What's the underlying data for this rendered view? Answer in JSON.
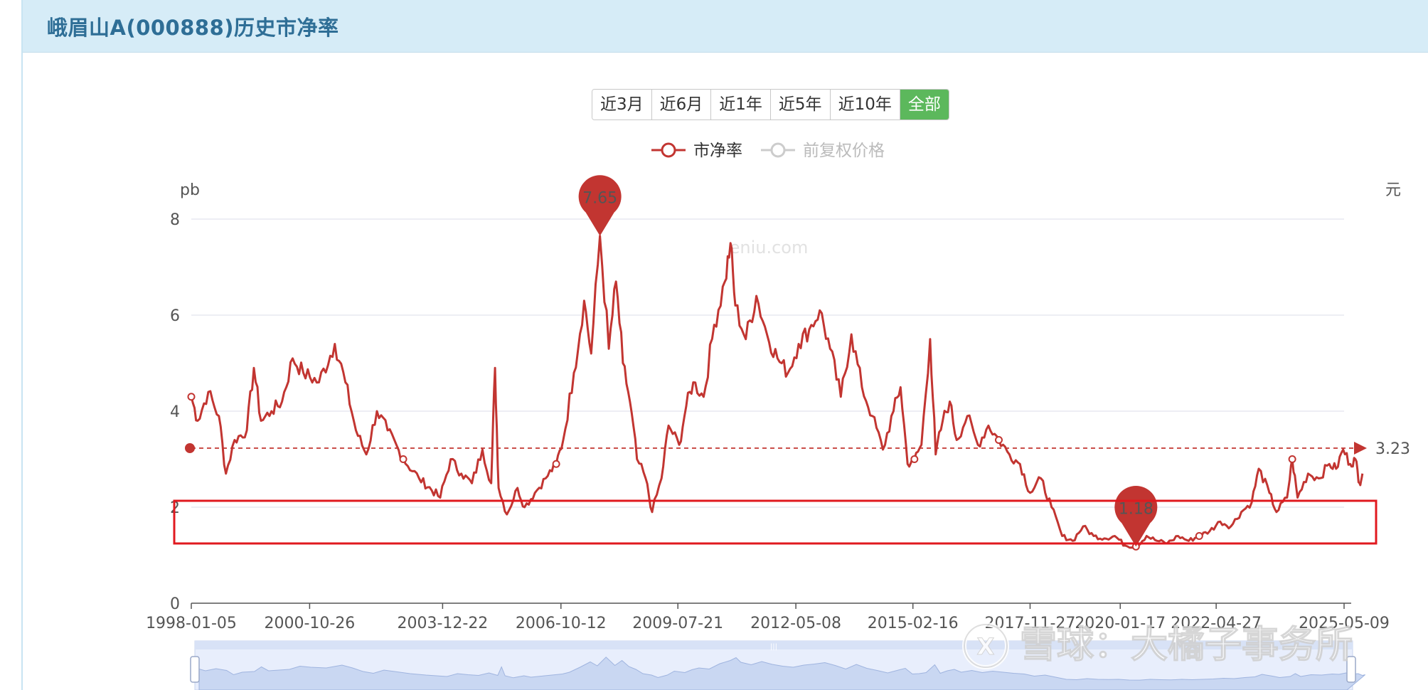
{
  "title": "峨眉山A(000888)历史市净率",
  "range_buttons": [
    "近3月",
    "近6月",
    "近1年",
    "近5年",
    "近10年",
    "全部"
  ],
  "active_range": "全部",
  "colors": {
    "series": "#c23531",
    "inactive": "#cccccc",
    "button_active": "#5cb85c",
    "highlight_box": "#e0191f"
  },
  "watermarks": {
    "site": "eniu.com",
    "xueqiu": "雪球：大橘子事务所"
  },
  "chart_data": {
    "type": "line",
    "yname_left": "pb",
    "yname_right": "元",
    "ylim": [
      0,
      8
    ],
    "yticks": [
      "0",
      "2",
      "4",
      "6",
      "8"
    ],
    "xticks": [
      "1998-01-05",
      "2000-10-26",
      "2003-12-22",
      "2006-10-12",
      "2009-07-21",
      "2012-05-08",
      "2015-02-16",
      "2017-11-27",
      "2020-01-17",
      "2022-04-27",
      "2025-05-09"
    ],
    "series": [
      {
        "name": "市净率",
        "points": [
          [
            "1998-01-05",
            4.3
          ],
          [
            "1998-03-01",
            3.8
          ],
          [
            "1998-06-01",
            4.4
          ],
          [
            "1998-09-01",
            3.9
          ],
          [
            "1998-11-01",
            2.7
          ],
          [
            "1999-01-15",
            3.4
          ],
          [
            "1999-05-01",
            3.6
          ],
          [
            "1999-07-01",
            4.9
          ],
          [
            "1999-09-01",
            3.8
          ],
          [
            "1999-12-01",
            4.0
          ],
          [
            "2000-03-01",
            4.2
          ],
          [
            "2000-06-01",
            5.1
          ],
          [
            "2000-09-01",
            4.8
          ],
          [
            "2001-01-15",
            4.6
          ],
          [
            "2001-06-01",
            5.4
          ],
          [
            "2001-09-01",
            4.6
          ],
          [
            "2001-12-01",
            3.6
          ],
          [
            "2002-03-01",
            3.1
          ],
          [
            "2002-06-01",
            4.0
          ],
          [
            "2002-09-01",
            3.6
          ],
          [
            "2003-01-15",
            3.0
          ],
          [
            "2003-06-01",
            2.6
          ],
          [
            "2003-12-01",
            2.2
          ],
          [
            "2004-03-01",
            3.0
          ],
          [
            "2004-06-01",
            2.7
          ],
          [
            "2004-09-01",
            2.5
          ],
          [
            "2004-12-01",
            3.2
          ],
          [
            "2005-02-15",
            2.5
          ],
          [
            "2005-03-20",
            4.9
          ],
          [
            "2005-04-20",
            2.4
          ],
          [
            "2005-07-01",
            1.85
          ],
          [
            "2005-10-01",
            2.4
          ],
          [
            "2005-12-01",
            2.0
          ],
          [
            "2006-03-01",
            2.3
          ],
          [
            "2006-06-01",
            2.6
          ],
          [
            "2006-09-01",
            2.9
          ],
          [
            "2006-11-01",
            3.4
          ],
          [
            "2007-02-01",
            4.8
          ],
          [
            "2007-05-01",
            6.3
          ],
          [
            "2007-07-01",
            5.2
          ],
          [
            "2007-09-15",
            7.65
          ],
          [
            "2007-12-01",
            5.3
          ],
          [
            "2008-02-01",
            6.7
          ],
          [
            "2008-04-01",
            5.0
          ],
          [
            "2008-06-01",
            4.2
          ],
          [
            "2008-08-01",
            3.0
          ],
          [
            "2008-10-15",
            2.6
          ],
          [
            "2008-12-10",
            1.9
          ],
          [
            "2009-03-01",
            2.6
          ],
          [
            "2009-05-01",
            3.7
          ],
          [
            "2009-08-01",
            3.3
          ],
          [
            "2009-10-01",
            4.1
          ],
          [
            "2009-12-01",
            4.6
          ],
          [
            "2010-03-01",
            4.3
          ],
          [
            "2010-06-01",
            5.8
          ],
          [
            "2010-09-01",
            6.7
          ],
          [
            "2010-10-20",
            7.5
          ],
          [
            "2010-12-01",
            6.2
          ],
          [
            "2011-03-01",
            5.5
          ],
          [
            "2011-06-01",
            6.4
          ],
          [
            "2011-09-01",
            5.6
          ],
          [
            "2011-12-01",
            5.1
          ],
          [
            "2012-03-01",
            4.8
          ],
          [
            "2012-06-01",
            5.4
          ],
          [
            "2012-09-01",
            5.7
          ],
          [
            "2012-12-01",
            6.1
          ],
          [
            "2013-03-01",
            5.3
          ],
          [
            "2013-06-01",
            4.3
          ],
          [
            "2013-09-01",
            5.6
          ],
          [
            "2013-12-01",
            4.5
          ],
          [
            "2014-03-01",
            3.9
          ],
          [
            "2014-06-01",
            3.2
          ],
          [
            "2014-09-01",
            4.0
          ],
          [
            "2014-11-01",
            4.5
          ],
          [
            "2015-01-01",
            2.9
          ],
          [
            "2015-03-01",
            3.0
          ],
          [
            "2015-05-01",
            3.3
          ],
          [
            "2015-07-15",
            5.5
          ],
          [
            "2015-09-01",
            3.1
          ],
          [
            "2015-11-01",
            3.8
          ],
          [
            "2016-01-01",
            4.2
          ],
          [
            "2016-03-01",
            3.4
          ],
          [
            "2016-06-01",
            3.9
          ],
          [
            "2016-09-01",
            3.3
          ],
          [
            "2016-12-01",
            3.7
          ],
          [
            "2017-03-01",
            3.4
          ],
          [
            "2017-06-01",
            3.1
          ],
          [
            "2017-09-01",
            2.9
          ],
          [
            "2017-11-27",
            2.3
          ],
          [
            "2018-03-01",
            2.6
          ],
          [
            "2018-06-01",
            2.0
          ],
          [
            "2018-09-01",
            1.4
          ],
          [
            "2018-12-01",
            1.3
          ],
          [
            "2019-03-01",
            1.6
          ],
          [
            "2019-06-01",
            1.4
          ],
          [
            "2019-09-01",
            1.35
          ],
          [
            "2019-12-01",
            1.4
          ],
          [
            "2020-03-01",
            1.2
          ],
          [
            "2020-06-01",
            1.18
          ],
          [
            "2020-09-01",
            1.4
          ],
          [
            "2020-12-01",
            1.3
          ],
          [
            "2021-03-01",
            1.25
          ],
          [
            "2021-06-01",
            1.4
          ],
          [
            "2021-09-01",
            1.3
          ],
          [
            "2021-12-01",
            1.4
          ],
          [
            "2022-03-01",
            1.5
          ],
          [
            "2022-06-01",
            1.7
          ],
          [
            "2022-09-01",
            1.6
          ],
          [
            "2022-12-01",
            1.9
          ],
          [
            "2023-03-01",
            2.1
          ],
          [
            "2023-05-01",
            2.8
          ],
          [
            "2023-08-01",
            2.3
          ],
          [
            "2023-10-01",
            1.9
          ],
          [
            "2024-01-01",
            2.2
          ],
          [
            "2024-02-15",
            3.0
          ],
          [
            "2024-04-01",
            2.2
          ],
          [
            "2024-07-01",
            2.7
          ],
          [
            "2024-10-01",
            2.6
          ],
          [
            "2025-01-01",
            2.9
          ],
          [
            "2025-03-01",
            2.8
          ],
          [
            "2025-05-01",
            3.2
          ],
          [
            "2025-07-01",
            2.9
          ],
          [
            "2025-08-15",
            3.0
          ],
          [
            "2025-09-20",
            2.5
          ],
          [
            "2025-10-15",
            2.7
          ]
        ]
      },
      {
        "name": "前复权价格",
        "points": []
      }
    ],
    "mark_points": [
      {
        "label": "7.65",
        "date": "2007-09-15",
        "value": 7.65
      },
      {
        "label": "1.18",
        "date": "2020-06-01",
        "value": 1.18
      }
    ],
    "mark_line": {
      "label": "3.23",
      "value": 3.23
    },
    "legend": "top-center"
  }
}
